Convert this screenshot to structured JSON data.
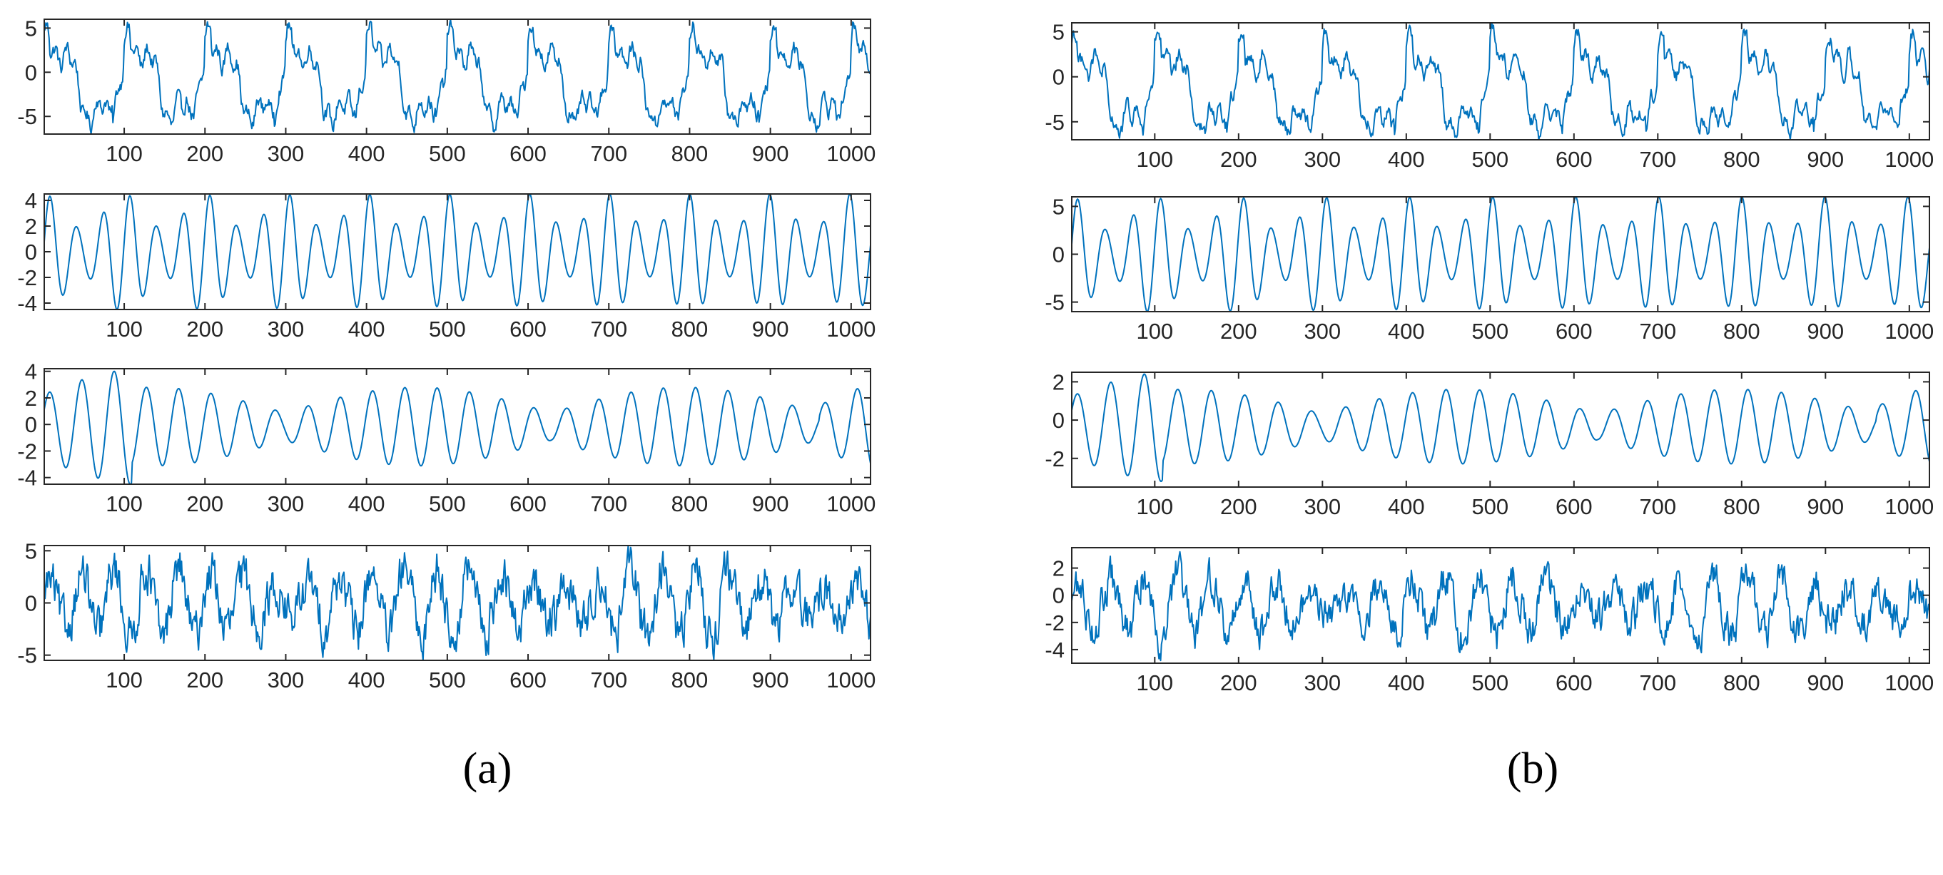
{
  "series_color": "#0072BD",
  "panel_labels": [
    "(a)",
    "(b)"
  ],
  "chart_data": [
    {
      "id": "a1",
      "type": "line",
      "column": 0,
      "row": 0,
      "signal": "composite",
      "xlim": [
        1,
        1024
      ],
      "ylim": [
        -7,
        6
      ],
      "xticks": [
        100,
        200,
        300,
        400,
        500,
        600,
        700,
        800,
        900,
        1000
      ],
      "yticks": [
        -5,
        0,
        5
      ],
      "xtick_labels": [
        "100",
        "200",
        "300",
        "400",
        "500",
        "600",
        "700",
        "800",
        "900",
        "1000"
      ],
      "ytick_labels": [
        "-5",
        "0",
        "5"
      ],
      "n_points": 1024,
      "period": 100,
      "amplitude_range": [
        -7,
        6
      ],
      "has_noise": true
    },
    {
      "id": "a2",
      "type": "line",
      "column": 0,
      "row": 1,
      "signal": "oscillation",
      "xlim": [
        1,
        1024
      ],
      "ylim": [
        -4.5,
        4.5
      ],
      "xticks": [
        100,
        200,
        300,
        400,
        500,
        600,
        700,
        800,
        900,
        1000
      ],
      "yticks": [
        -4,
        -2,
        0,
        2,
        4
      ],
      "xtick_labels": [
        "100",
        "200",
        "300",
        "400",
        "500",
        "600",
        "700",
        "800",
        "900",
        "1000"
      ],
      "ytick_labels": [
        "-4",
        "-2",
        "0",
        "2",
        "4"
      ],
      "n_points": 1024,
      "period": 33,
      "amplitude_range": [
        -4.5,
        4.5
      ],
      "has_noise": false
    },
    {
      "id": "a3",
      "type": "line",
      "column": 0,
      "row": 2,
      "signal": "modulated",
      "xlim": [
        1,
        1024
      ],
      "ylim": [
        -4.5,
        4.2
      ],
      "xticks": [
        100,
        200,
        300,
        400,
        500,
        600,
        700,
        800,
        900,
        1000
      ],
      "yticks": [
        -4,
        -2,
        0,
        2,
        4
      ],
      "xtick_labels": [
        "100",
        "200",
        "300",
        "400",
        "500",
        "600",
        "700",
        "800",
        "900",
        "1000"
      ],
      "ytick_labels": [
        "-4",
        "-2",
        "0",
        "2",
        "4"
      ],
      "n_points": 1024,
      "period": 40,
      "amplitude_range": [
        -4.5,
        4
      ],
      "has_noise": false
    },
    {
      "id": "a4",
      "type": "line",
      "column": 0,
      "row": 3,
      "signal": "noisy",
      "xlim": [
        1,
        1024
      ],
      "ylim": [
        -5.5,
        5.5
      ],
      "xticks": [
        100,
        200,
        300,
        400,
        500,
        600,
        700,
        800,
        900,
        1000
      ],
      "yticks": [
        -5,
        0,
        5
      ],
      "xtick_labels": [
        "100",
        "200",
        "300",
        "400",
        "500",
        "600",
        "700",
        "800",
        "900",
        "1000"
      ],
      "ytick_labels": [
        "-5",
        "0",
        "5"
      ],
      "n_points": 1024,
      "period": 40,
      "amplitude_range": [
        -5.5,
        5.5
      ],
      "has_noise": true
    },
    {
      "id": "b1",
      "type": "line",
      "column": 1,
      "row": 0,
      "signal": "composite",
      "xlim": [
        1,
        1024
      ],
      "ylim": [
        -7,
        6
      ],
      "xticks": [
        100,
        200,
        300,
        400,
        500,
        600,
        700,
        800,
        900,
        1000
      ],
      "yticks": [
        -5,
        0,
        5
      ],
      "xtick_labels": [
        "100",
        "200",
        "300",
        "400",
        "500",
        "600",
        "700",
        "800",
        "900",
        "1000"
      ],
      "ytick_labels": [
        "-5",
        "0",
        "5"
      ],
      "n_points": 1024,
      "period": 100,
      "amplitude_range": [
        -7,
        6
      ],
      "has_noise": true
    },
    {
      "id": "b2",
      "type": "line",
      "column": 1,
      "row": 1,
      "signal": "oscillation",
      "xlim": [
        1,
        1024
      ],
      "ylim": [
        -6,
        6
      ],
      "xticks": [
        100,
        200,
        300,
        400,
        500,
        600,
        700,
        800,
        900,
        1000
      ],
      "yticks": [
        -5,
        0,
        5
      ],
      "xtick_labels": [
        "100",
        "200",
        "300",
        "400",
        "500",
        "600",
        "700",
        "800",
        "900",
        "1000"
      ],
      "ytick_labels": [
        "-5",
        "0",
        "5"
      ],
      "n_points": 1024,
      "period": 33,
      "amplitude_range": [
        -6,
        6
      ],
      "has_noise": false
    },
    {
      "id": "b3",
      "type": "line",
      "column": 1,
      "row": 2,
      "signal": "modulated",
      "xlim": [
        1,
        1024
      ],
      "ylim": [
        -3.5,
        2.5
      ],
      "xticks": [
        100,
        200,
        300,
        400,
        500,
        600,
        700,
        800,
        900,
        1000
      ],
      "yticks": [
        -2,
        0,
        2
      ],
      "xtick_labels": [
        "100",
        "200",
        "300",
        "400",
        "500",
        "600",
        "700",
        "800",
        "900",
        "1000"
      ],
      "ytick_labels": [
        "-2",
        "0",
        "2"
      ],
      "n_points": 1024,
      "period": 40,
      "amplitude_range": [
        -3.2,
        2.4
      ],
      "has_noise": false
    },
    {
      "id": "b4",
      "type": "line",
      "column": 1,
      "row": 3,
      "signal": "noisy",
      "xlim": [
        1,
        1024
      ],
      "ylim": [
        -5,
        3.5
      ],
      "xticks": [
        100,
        200,
        300,
        400,
        500,
        600,
        700,
        800,
        900,
        1000
      ],
      "yticks": [
        -4,
        -2,
        0,
        2
      ],
      "xtick_labels": [
        "100",
        "200",
        "300",
        "400",
        "500",
        "600",
        "700",
        "800",
        "900",
        "1000"
      ],
      "ytick_labels": [
        "-4",
        "-2",
        "0",
        "2"
      ],
      "n_points": 1024,
      "period": 40,
      "amplitude_range": [
        -4.8,
        3.2
      ],
      "has_noise": true
    }
  ]
}
